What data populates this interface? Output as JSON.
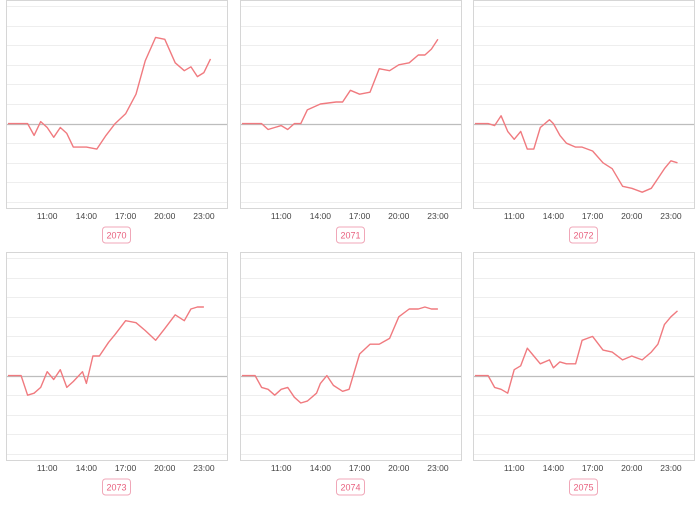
{
  "colors": {
    "line": "#f07a7f",
    "baseline": "#bdbdbd",
    "grid": "#eeeeee",
    "frame": "#d6d6d6",
    "tick_text": "#444444",
    "badge_text": "#e8617f",
    "badge_border": "#f0a7b8"
  },
  "chart_data": [
    {
      "type": "line",
      "title": "2070",
      "x": [
        8,
        9,
        9.5,
        10,
        10.5,
        11,
        11.5,
        12,
        12.5,
        13,
        14,
        14.8,
        15.5,
        16.2,
        17,
        17.8,
        18.5,
        19.3,
        20,
        20.8,
        21.5,
        22,
        22.5,
        23,
        23.5
      ],
      "values": [
        0,
        0,
        0,
        -0.6,
        0.1,
        -0.2,
        -0.7,
        -0.2,
        -0.5,
        -1.2,
        -1.2,
        -1.3,
        -0.6,
        0,
        0.5,
        1.5,
        3.2,
        4.4,
        4.3,
        3.1,
        2.7,
        2.9,
        2.4,
        2.6,
        3.3
      ],
      "baseline": 0,
      "xlim": [
        8,
        24
      ],
      "ylim": [
        -4,
        6
      ],
      "xticks": [
        "11:00",
        "14:00",
        "17:00",
        "20:00",
        "23:00"
      ],
      "xtick_values": [
        11,
        14,
        17,
        20,
        23
      ]
    },
    {
      "type": "line",
      "title": "2071",
      "x": [
        8,
        9,
        9.5,
        10,
        10.5,
        11,
        11.5,
        12,
        12.5,
        13,
        14,
        15.2,
        15.7,
        16.3,
        17,
        17.8,
        18.5,
        19.3,
        20,
        20.8,
        21.5,
        22,
        22.5,
        23
      ],
      "values": [
        0,
        0,
        0,
        -0.3,
        -0.2,
        -0.1,
        -0.3,
        0,
        0,
        0.7,
        1.0,
        1.1,
        1.1,
        1.7,
        1.5,
        1.6,
        2.8,
        2.7,
        3.0,
        3.1,
        3.5,
        3.5,
        3.8,
        4.3
      ],
      "baseline": 0,
      "xlim": [
        8,
        24
      ],
      "ylim": [
        -4,
        6
      ],
      "xticks": [
        "11:00",
        "14:00",
        "17:00",
        "20:00",
        "23:00"
      ],
      "xtick_values": [
        11,
        14,
        17,
        20,
        23
      ]
    },
    {
      "type": "line",
      "title": "2072",
      "x": [
        8,
        9,
        9.5,
        10,
        10.5,
        11,
        11.5,
        12,
        12.5,
        13,
        13.7,
        14,
        14.5,
        15,
        15.7,
        16.2,
        17,
        17.8,
        18.5,
        19.3,
        20,
        20.8,
        21.5,
        22,
        22.5,
        23,
        23.5
      ],
      "values": [
        0,
        0,
        -0.1,
        0.4,
        -0.4,
        -0.8,
        -0.4,
        -1.3,
        -1.3,
        -0.2,
        0.2,
        0,
        -0.6,
        -1.0,
        -1.2,
        -1.2,
        -1.4,
        -2.0,
        -2.3,
        -3.2,
        -3.3,
        -3.5,
        -3.3,
        -2.8,
        -2.3,
        -1.9,
        -2.0
      ],
      "baseline": 0,
      "xlim": [
        8,
        24
      ],
      "ylim": [
        -4,
        6
      ],
      "xticks": [
        "11:00",
        "14:00",
        "17:00",
        "20:00",
        "23:00"
      ],
      "xtick_values": [
        11,
        14,
        17,
        20,
        23
      ]
    },
    {
      "type": "line",
      "title": "2073",
      "x": [
        8,
        9,
        9.5,
        10,
        10.5,
        11,
        11.5,
        12,
        12.5,
        13,
        13.7,
        14,
        14.5,
        15,
        15.7,
        16.2,
        17,
        17.8,
        18.5,
        19.3,
        20,
        20.8,
        21.5,
        22,
        22.5,
        23
      ],
      "values": [
        0,
        0,
        -1.0,
        -0.9,
        -0.6,
        0.2,
        -0.2,
        0.3,
        -0.6,
        -0.3,
        0.2,
        -0.4,
        1.0,
        1.0,
        1.7,
        2.1,
        2.8,
        2.7,
        2.3,
        1.8,
        2.4,
        3.1,
        2.8,
        3.4,
        3.5,
        3.5
      ],
      "baseline": 0,
      "xlim": [
        8,
        24
      ],
      "ylim": [
        -4,
        6
      ],
      "xticks": [
        "11:00",
        "14:00",
        "17:00",
        "20:00",
        "23:00"
      ],
      "xtick_values": [
        11,
        14,
        17,
        20,
        23
      ]
    },
    {
      "type": "line",
      "title": "2074",
      "x": [
        8,
        9,
        9.5,
        10,
        10.5,
        11,
        11.5,
        12,
        12.5,
        13,
        13.7,
        14,
        14.5,
        15,
        15.7,
        16.2,
        17,
        17.8,
        18.5,
        19.3,
        20,
        20.8,
        21.5,
        22,
        22.5,
        23
      ],
      "values": [
        0,
        0,
        -0.6,
        -0.7,
        -1.0,
        -0.7,
        -0.6,
        -1.1,
        -1.4,
        -1.3,
        -0.9,
        -0.4,
        0,
        -0.5,
        -0.8,
        -0.7,
        1.1,
        1.6,
        1.6,
        1.9,
        3.0,
        3.4,
        3.4,
        3.5,
        3.4,
        3.4
      ],
      "baseline": 0,
      "xlim": [
        8,
        24
      ],
      "ylim": [
        -4,
        6
      ],
      "xticks": [
        "11:00",
        "14:00",
        "17:00",
        "20:00",
        "23:00"
      ],
      "xtick_values": [
        11,
        14,
        17,
        20,
        23
      ]
    },
    {
      "type": "line",
      "title": "2075",
      "x": [
        8,
        9,
        9.5,
        10,
        10.5,
        11,
        11.5,
        12,
        12.5,
        13,
        13.7,
        14,
        14.5,
        15,
        15.7,
        16.2,
        17,
        17.8,
        18.5,
        19.3,
        20,
        20.8,
        21.5,
        22,
        22.5,
        23,
        23.5
      ],
      "values": [
        0,
        0,
        -0.6,
        -0.7,
        -0.9,
        0.3,
        0.5,
        1.4,
        1.0,
        0.6,
        0.8,
        0.4,
        0.7,
        0.6,
        0.6,
        1.8,
        2.0,
        1.3,
        1.2,
        0.8,
        1.0,
        0.8,
        1.2,
        1.6,
        2.6,
        3.0,
        3.3
      ],
      "baseline": 0,
      "xlim": [
        8,
        24
      ],
      "ylim": [
        -4,
        6
      ],
      "xticks": [
        "11:00",
        "14:00",
        "17:00",
        "20:00",
        "23:00"
      ],
      "xtick_values": [
        11,
        14,
        17,
        20,
        23
      ]
    }
  ]
}
